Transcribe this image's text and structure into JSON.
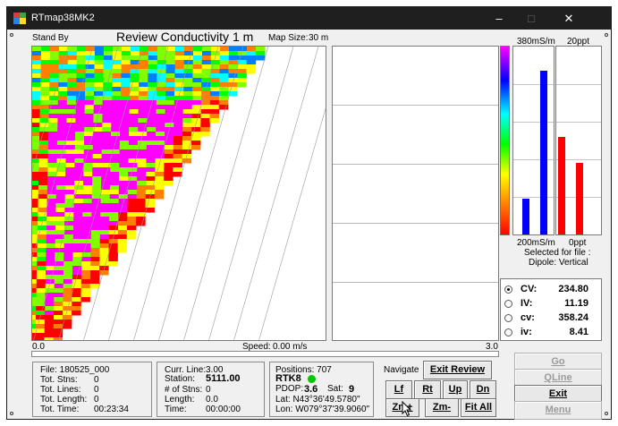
{
  "window": {
    "title": "RTmap38MK2",
    "controls": {
      "minimize": "–",
      "maximize": "□",
      "close": "✕"
    }
  },
  "header": {
    "status": "Stand By",
    "mode_title": "Review Conductivity 1 m",
    "map_size_label": "Map Size:",
    "map_size_value": "30 m"
  },
  "scale": {
    "top_left": "380mS/m",
    "top_right": "20ppt",
    "bottom_left": "200mS/m",
    "bottom_right": "0ppt",
    "selected_for_file": "Selected for file :",
    "dipole": "Dipole: Vertical"
  },
  "bars": {
    "conductivity": [
      {
        "level": 0.19,
        "color": "#0000ff"
      },
      {
        "level": 0.87,
        "color": "#0000ff"
      }
    ],
    "salinity": [
      {
        "level": 0.52,
        "color": "#ff0000"
      },
      {
        "level": 0.38,
        "color": "#ff0000"
      }
    ]
  },
  "readout": {
    "items": [
      {
        "key": "CV:",
        "value": "234.80",
        "selected": true
      },
      {
        "key": "IV:",
        "value": "11.19",
        "selected": false
      },
      {
        "key": "cv:",
        "value": "358.24",
        "selected": false
      },
      {
        "key": "iv:",
        "value": "8.41",
        "selected": false
      }
    ]
  },
  "track": {
    "start": "0.0",
    "end": "3.0",
    "speed_label": "Speed:",
    "speed_value": "0.00 m/s"
  },
  "file_info": {
    "file": "File: 180525_000",
    "tot_stns_label": "Tot. Stns:",
    "tot_stns": "0",
    "tot_lines_label": "Tot. Lines:",
    "tot_lines": "0",
    "tot_length_label": "Tot. Length:",
    "tot_length": "0",
    "tot_time_label": "Tot. Time:",
    "tot_time": "00:23:34"
  },
  "line_info": {
    "curr_line_label": "Curr. Line:",
    "curr_line": "3.00",
    "station_label": "Station:",
    "station": "5111.00",
    "num_stns_label": "# of Stns:",
    "num_stns": "0",
    "length_label": "Length:",
    "length": "0.0",
    "time_label": "Time:",
    "time": "00:00:00"
  },
  "gps": {
    "positions": "Positions: 707",
    "fix": "RTK8",
    "pdop_label": "PDOP:",
    "pdop": "3.6",
    "sat_label": "Sat:",
    "sat": "9",
    "lat": "Lat:   N43°36'49.5780\"",
    "lon": "Lon: W079°37'39.9060\"",
    "fix_color": "#00c800"
  },
  "navigate": {
    "label": "Navigate",
    "exit_review": "Exit Review",
    "left": "Lf",
    "right": "Rt",
    "up": "Up",
    "down": "Dn",
    "zoom_in": "Zm+",
    "zoom_out": "Zm-",
    "fit_all": "Fit All"
  },
  "actions": {
    "go": "Go",
    "qline": "QLine",
    "exit": "Exit",
    "menu": "Menu"
  }
}
